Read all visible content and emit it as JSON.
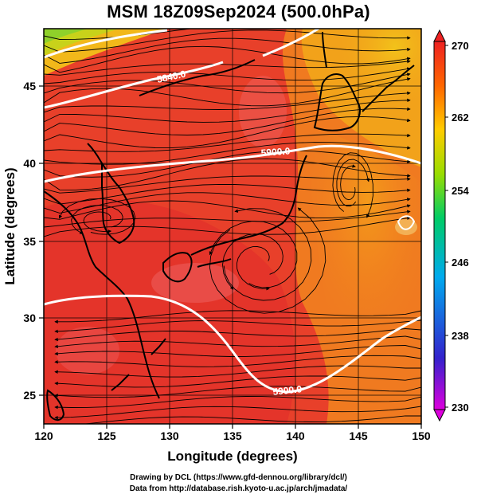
{
  "title": "MSM 18Z09Sep2024 (500.0hPa)",
  "axes": {
    "xlabel": "Longitude (degrees)",
    "ylabel": "Latitude  (degrees)",
    "xlim": [
      120,
      150
    ],
    "ylim": [
      22.5,
      47.5
    ],
    "xticks": [
      "120",
      "125",
      "130",
      "135",
      "140",
      "145",
      "150"
    ],
    "yticks": [
      "25",
      "30",
      "35",
      "40",
      "45"
    ]
  },
  "colorbar": {
    "range": [
      230,
      270
    ],
    "ticks": [
      "270",
      "262",
      "254",
      "246",
      "238",
      "230"
    ],
    "colors": [
      "#dd00dd",
      "#3322cc",
      "#00aaee",
      "#00cc66",
      "#99dd00",
      "#ffcc00",
      "#ff6600",
      "#ee2222"
    ]
  },
  "contours": [
    {
      "label": "5840.0",
      "level": 5840.0
    },
    {
      "label": "5900.0",
      "level": 5900.0
    },
    {
      "label": "5900.0",
      "level": 5900.0
    }
  ],
  "features": {
    "typhoon_center": {
      "lon": 137.2,
      "lat": 32.8
    }
  },
  "credits": {
    "line1": "Drawing by DCL (https://www.gfd-dennou.org/library/dcl/)",
    "line2": "Data from http://database.rish.kyoto-u.ac.jp/arch/jmadata/"
  }
}
